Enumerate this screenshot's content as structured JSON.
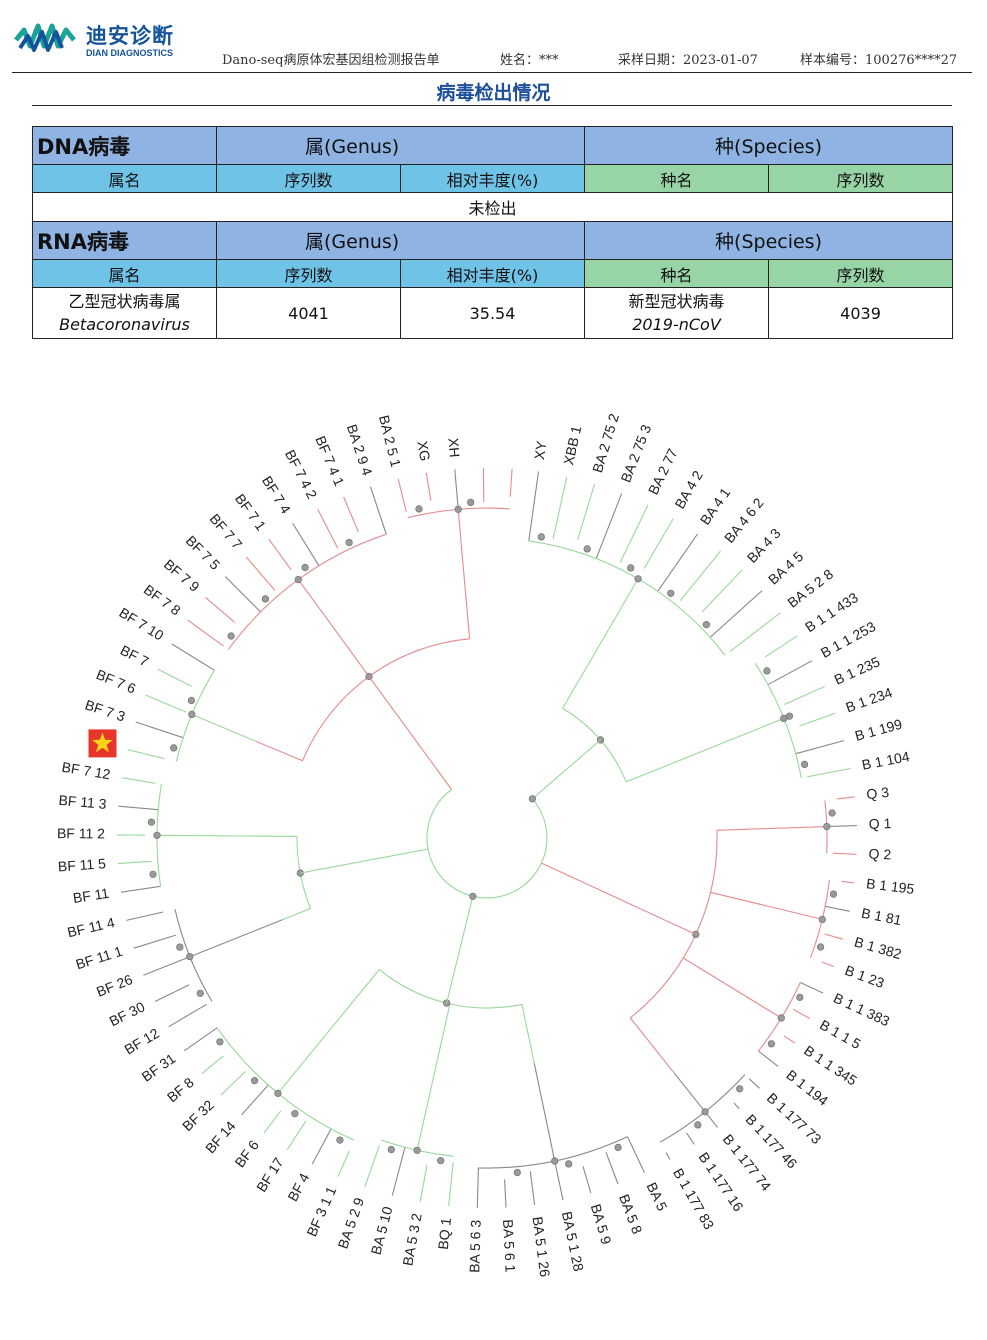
{
  "header": {
    "brand_cn": "迪安诊断",
    "brand_en": "DIAN DIAGNOSTICS",
    "report_name": "Dano-seq病原体宏基因组检测报告单",
    "patient": "姓名：***",
    "sample_date": "采样日期：2023-01-07",
    "sample_no": "样本编号：100276****27"
  },
  "section_title": "病毒检出情况",
  "table": {
    "genus_header": "属(Genus)",
    "species_header": "种(Species)",
    "cols": [
      "属名",
      "序列数",
      "相对丰度(%)",
      "种名",
      "序列数"
    ],
    "dna": {
      "label": "DNA病毒",
      "result": "未检出"
    },
    "rna": {
      "label": "RNA病毒",
      "row": {
        "genus_cn": "乙型冠状病毒属",
        "genus_latin": "Betacoronavirus",
        "genus_reads": "4041",
        "abundance": "35.54",
        "species_cn": "新型冠状病毒",
        "species_latin": "2019-nCoV",
        "species_reads": "4039"
      }
    }
  },
  "tree": {
    "sample_marker": "star",
    "colors": {
      "red": "#e58b8b",
      "green": "#9ad79a",
      "gray": "#888888",
      "node": "#9a9a9a",
      "marker": "#e8352b",
      "star": "#ffd21a"
    },
    "leaves": [
      "XY",
      "XBB 1",
      "BA 2 75 2",
      "BA 2 75 3",
      "BA 2 77",
      "BA 4 2",
      "BA 4 1",
      "BA 4 6 2",
      "BA 4 3",
      "BA 4 5",
      "BA 5 2 8",
      "B 1 1 433",
      "B 1 1 253",
      "B 1 235",
      "B 1 234",
      "B 1 199",
      "B 1 104",
      "Q 3",
      "Q 1",
      "Q 2",
      "B 1 195",
      "B 1 81",
      "B 1 382",
      "B 1 23",
      "B 1 1 383",
      "B 1 1 5",
      "B 1 1 345",
      "B 1 194",
      "B 1 177 73",
      "B 1 177 46",
      "B 1 177 74",
      "B 1 177 16",
      "B 1 177 83",
      "BA 5",
      "BA 5 8",
      "BA 5 9",
      "BA 5 1 28",
      "BA 5 1 26",
      "BA 5 6 1",
      "BA 5 6 3",
      "BQ 1",
      "BA 5 3 2",
      "BA 5 10",
      "BA 5 2 9",
      "BF 3 1 1",
      "BF 4",
      "BF 17",
      "BF 6",
      "BF 14",
      "BF 32",
      "BF 8",
      "BF 31",
      "BF 12",
      "BF 30",
      "BF 26",
      "BF 11 1",
      "BF 11 4",
      "BF 11",
      "BF 11 5",
      "BF 11 2",
      "BF 11 3",
      "BF 7 12",
      "",
      "BF 7 3",
      "BF 7 6",
      "BF 7",
      "BF 7 10",
      "BF 7 8",
      "BF 7 9",
      "BF 7 5",
      "BF 7 7",
      "BF 7 1",
      "BF 7 4",
      "BF 7 4 2",
      "BF 7 4 1",
      "BA 2 9 4",
      "BA 2 5 1",
      "XG",
      "XH"
    ]
  }
}
